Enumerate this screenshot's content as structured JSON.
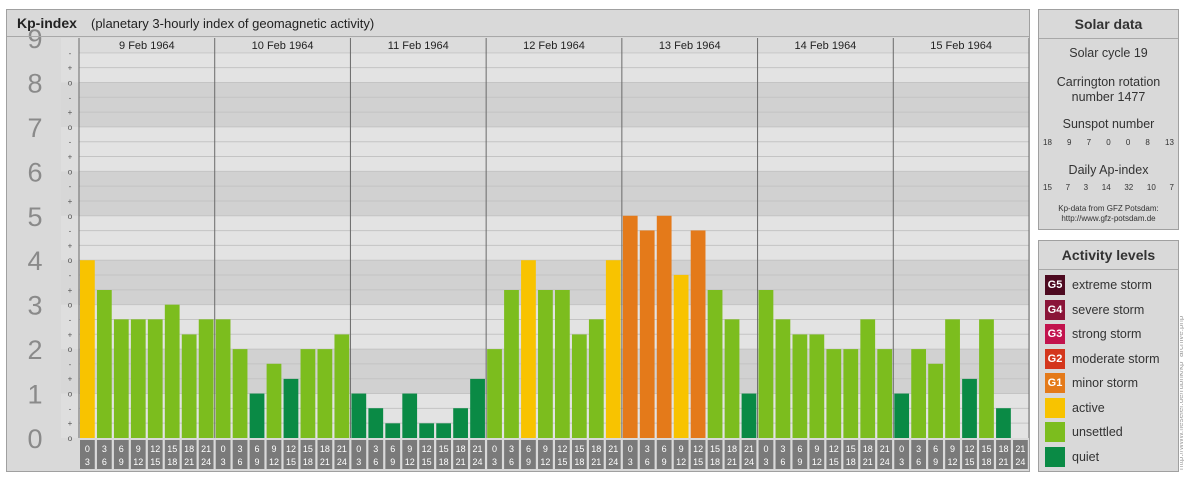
{
  "header": {
    "title": "Kp-index",
    "subtitle": "(planetary 3-hourly index of geomagnetic activity)"
  },
  "colors": {
    "quiet": "#0a8a45",
    "unsettled": "#7cbd1e",
    "active": "#f8c300",
    "minor_storm": "#e47a1a",
    "moderate_storm": "#d4361c",
    "strong_storm": "#c2134d",
    "severe_storm": "#8a1438",
    "extreme_storm": "#4d0a20"
  },
  "chart_data": {
    "type": "bar",
    "title": "Kp-index",
    "ylim": [
      0,
      9
    ],
    "y_ticks": [
      "0",
      "1",
      "2",
      "3",
      "4",
      "5",
      "6",
      "7",
      "8",
      "9"
    ],
    "sub_ticks": [
      "o",
      "+",
      "-"
    ],
    "days": [
      "9 Feb 1964",
      "10 Feb 1964",
      "11 Feb 1964",
      "12 Feb 1964",
      "13 Feb 1964",
      "14 Feb 1964",
      "15 Feb 1964"
    ],
    "interval_start": [
      "0",
      "3",
      "6",
      "9",
      "12",
      "15",
      "18",
      "21"
    ],
    "interval_end": [
      "3",
      "6",
      "9",
      "12",
      "15",
      "18",
      "21",
      "24"
    ],
    "values": [
      [
        4.0,
        3.33,
        2.67,
        2.67,
        2.67,
        3.0,
        2.33,
        2.67
      ],
      [
        2.67,
        2.0,
        1.0,
        1.67,
        1.33,
        2.0,
        2.0,
        2.33
      ],
      [
        1.0,
        0.67,
        0.33,
        1.0,
        0.33,
        0.33,
        0.67,
        1.33
      ],
      [
        2.0,
        3.33,
        4.0,
        3.33,
        3.33,
        2.33,
        2.67,
        4.0
      ],
      [
        5.0,
        4.67,
        5.0,
        3.67,
        4.67,
        3.33,
        2.67,
        1.0
      ],
      [
        3.33,
        2.67,
        2.33,
        2.33,
        2.0,
        2.0,
        2.67,
        2.0
      ],
      [
        1.0,
        2.0,
        1.67,
        2.67,
        1.33,
        2.67,
        0.67,
        null
      ]
    ],
    "categories": [
      "quiet",
      "quiet",
      "quiet",
      "quiet",
      "quiet",
      "quiet",
      "quiet",
      "quiet"
    ],
    "value_colors": [
      [
        "active",
        "unsettled",
        "unsettled",
        "unsettled",
        "unsettled",
        "unsettled",
        "unsettled",
        "unsettled"
      ],
      [
        "unsettled",
        "unsettled",
        "quiet",
        "unsettled",
        "quiet",
        "unsettled",
        "unsettled",
        "unsettled"
      ],
      [
        "quiet",
        "quiet",
        "quiet",
        "quiet",
        "quiet",
        "quiet",
        "quiet",
        "quiet"
      ],
      [
        "unsettled",
        "unsettled",
        "active",
        "unsettled",
        "unsettled",
        "unsettled",
        "unsettled",
        "active"
      ],
      [
        "minor_storm",
        "minor_storm",
        "minor_storm",
        "active",
        "minor_storm",
        "unsettled",
        "unsettled",
        "quiet"
      ],
      [
        "unsettled",
        "unsettled",
        "unsettled",
        "unsettled",
        "unsettled",
        "unsettled",
        "unsettled",
        "unsettled"
      ],
      [
        "quiet",
        "unsettled",
        "unsettled",
        "unsettled",
        "quiet",
        "unsettled",
        "quiet",
        "quiet"
      ]
    ]
  },
  "solar_data": {
    "title": "Solar data",
    "solar_cycle": "Solar cycle 19",
    "carrington_1": "Carrington rotation",
    "carrington_2": "number 1477",
    "sunspot_title": "Sunspot number",
    "sunspot_values": [
      "18",
      "9",
      "7",
      "0",
      "0",
      "8",
      "13"
    ],
    "ap_title": "Daily Ap-index",
    "ap_values": [
      "15",
      "7",
      "3",
      "14",
      "32",
      "10",
      "7"
    ],
    "credit_1": "Kp-data from GFZ Potsdam:",
    "credit_2": "http://www.gfz-potsdam.de"
  },
  "activity_levels": {
    "title": "Activity levels",
    "items": [
      {
        "badge": "G5",
        "label": "extreme storm",
        "color": "#4d0a20"
      },
      {
        "badge": "G4",
        "label": "severe storm",
        "color": "#8a1438"
      },
      {
        "badge": "G3",
        "label": "strong storm",
        "color": "#c2134d"
      },
      {
        "badge": "G2",
        "label": "moderate storm",
        "color": "#d4361c"
      },
      {
        "badge": "G1",
        "label": "minor storm",
        "color": "#e47a1a"
      },
      {
        "badge": "",
        "label": "active",
        "color": "#f8c300"
      },
      {
        "badge": "",
        "label": "unsettled",
        "color": "#7cbd1e"
      },
      {
        "badge": "",
        "label": "quiet",
        "color": "#0a8a45"
      }
    ]
  },
  "watermark": "http://www.fieseler.de/rubrik/kp_archive.php"
}
